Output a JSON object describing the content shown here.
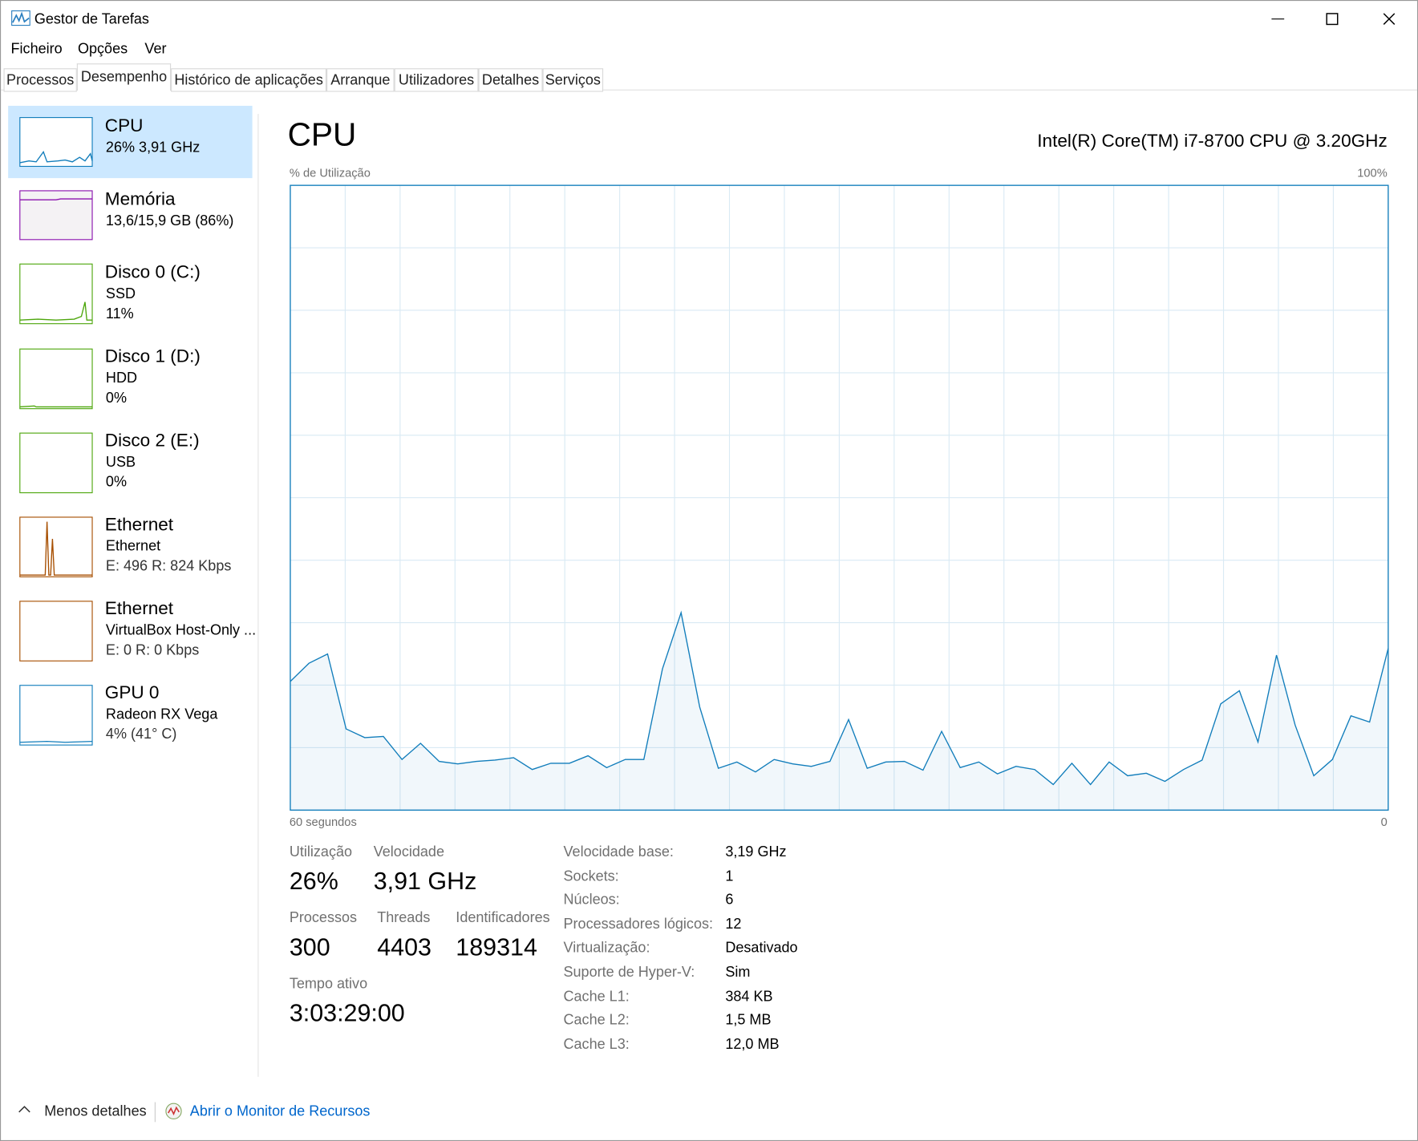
{
  "window": {
    "title": "Gestor de Tarefas"
  },
  "menu": [
    "Ficheiro",
    "Opções",
    "Ver"
  ],
  "tabs": [
    "Processos",
    "Desempenho",
    "Histórico de aplicações",
    "Arranque",
    "Utilizadores",
    "Detalhes",
    "Serviços"
  ],
  "sidebar": [
    {
      "name": "CPU",
      "lines": [
        "26%  3,91 GHz"
      ]
    },
    {
      "name": "Memória",
      "lines": [
        "13,6/15,9 GB (86%)"
      ]
    },
    {
      "name": "Disco 0 (C:)",
      "lines": [
        "SSD",
        "11%"
      ]
    },
    {
      "name": "Disco 1 (D:)",
      "lines": [
        "HDD",
        "0%"
      ]
    },
    {
      "name": "Disco 2 (E:)",
      "lines": [
        "USB",
        "0%"
      ]
    },
    {
      "name": "Ethernet",
      "lines": [
        "Ethernet",
        "E: 496  R: 824 Kbps"
      ]
    },
    {
      "name": "Ethernet",
      "lines": [
        "VirtualBox Host-Only ...",
        "E: 0  R: 0 Kbps"
      ]
    },
    {
      "name": "GPU 0",
      "lines": [
        "Radeon RX Vega",
        "4% (41° C)"
      ]
    }
  ],
  "main": {
    "title": "CPU",
    "model": "Intel(R) Core(TM) i7-8700 CPU @ 3.20GHz",
    "chart": {
      "type": "line",
      "y_label": "% de Utilização",
      "y_max_label": "100%",
      "x_left_label": "60 segundos",
      "x_right_label": "0",
      "ylim": [
        0,
        100
      ],
      "color": "#117dbb",
      "values": [
        20.6,
        23.5,
        25,
        13,
        11.6,
        11.8,
        8.1,
        10.7,
        7.8,
        7.4,
        7.8,
        8,
        8.4,
        6.5,
        7.5,
        7.5,
        8.7,
        6.8,
        8.1,
        8.1,
        22.6,
        31.6,
        16.5,
        6.7,
        7.7,
        6.1,
        8.1,
        7.4,
        7,
        7.8,
        14.5,
        6.7,
        7.7,
        7.8,
        6.4,
        12.6,
        6.8,
        7.7,
        5.8,
        7,
        6.5,
        4.1,
        7.5,
        4.1,
        7.7,
        5.5,
        5.9,
        4.6,
        6.5,
        8,
        17,
        19.1,
        10.9,
        24.8,
        13.6,
        5.5,
        8.1,
        15.1,
        14.1,
        25.9
      ]
    },
    "stats": [
      {
        "label": "Utilização",
        "value": "26%"
      },
      {
        "label": "Velocidade",
        "value": "3,91 GHz"
      },
      {
        "label": "Processos",
        "value": "300"
      },
      {
        "label": "Threads",
        "value": "4403"
      },
      {
        "label": "Identificadores",
        "value": "189314"
      },
      {
        "label": "Tempo ativo",
        "value": "3:03:29:00"
      }
    ],
    "details": [
      [
        "Velocidade base:",
        "3,19 GHz"
      ],
      [
        "Sockets:",
        "1"
      ],
      [
        "Núcleos:",
        "6"
      ],
      [
        "Processadores lógicos:",
        "12"
      ],
      [
        "Virtualização:",
        "Desativado"
      ],
      [
        "Suporte de Hyper-V:",
        "Sim"
      ],
      [
        "Cache L1:",
        "384 KB"
      ],
      [
        "Cache L2:",
        "1,5 MB"
      ],
      [
        "Cache L3:",
        "12,0 MB"
      ]
    ]
  },
  "footer": {
    "less": "Menos detalhes",
    "monitor": "Abrir o Monitor de Recursos"
  }
}
